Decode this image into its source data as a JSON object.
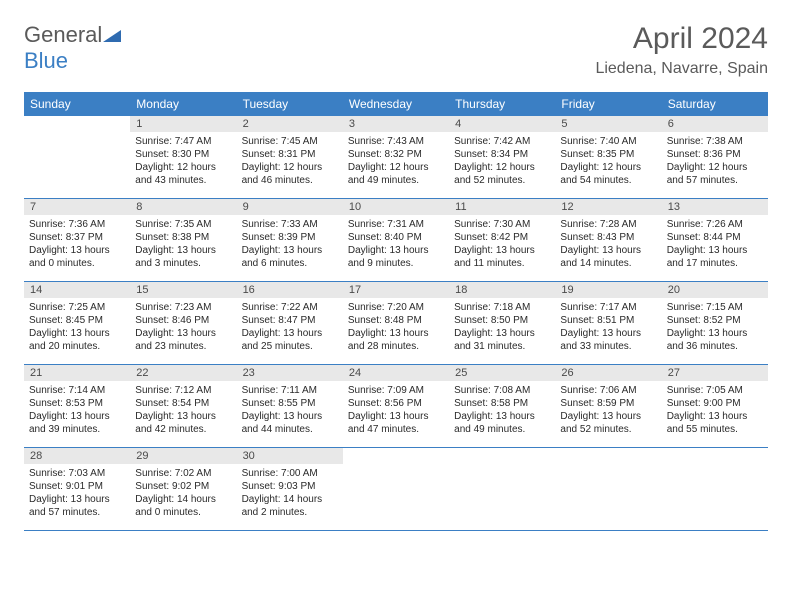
{
  "logo": {
    "text1": "General",
    "text2": "Blue"
  },
  "title": "April 2024",
  "location": "Liedena, Navarre, Spain",
  "colors": {
    "header_bg": "#3b7fc4",
    "header_fg": "#ffffff",
    "daynum_bg": "#e8e8e8",
    "text": "#2a2a2a",
    "title": "#5a5a5a",
    "rule": "#3b7fc4"
  },
  "weekdays": [
    "Sunday",
    "Monday",
    "Tuesday",
    "Wednesday",
    "Thursday",
    "Friday",
    "Saturday"
  ],
  "weeks": [
    [
      null,
      {
        "n": "1",
        "sr": "7:47 AM",
        "ss": "8:30 PM",
        "dl": "12 hours and 43 minutes."
      },
      {
        "n": "2",
        "sr": "7:45 AM",
        "ss": "8:31 PM",
        "dl": "12 hours and 46 minutes."
      },
      {
        "n": "3",
        "sr": "7:43 AM",
        "ss": "8:32 PM",
        "dl": "12 hours and 49 minutes."
      },
      {
        "n": "4",
        "sr": "7:42 AM",
        "ss": "8:34 PM",
        "dl": "12 hours and 52 minutes."
      },
      {
        "n": "5",
        "sr": "7:40 AM",
        "ss": "8:35 PM",
        "dl": "12 hours and 54 minutes."
      },
      {
        "n": "6",
        "sr": "7:38 AM",
        "ss": "8:36 PM",
        "dl": "12 hours and 57 minutes."
      }
    ],
    [
      {
        "n": "7",
        "sr": "7:36 AM",
        "ss": "8:37 PM",
        "dl": "13 hours and 0 minutes."
      },
      {
        "n": "8",
        "sr": "7:35 AM",
        "ss": "8:38 PM",
        "dl": "13 hours and 3 minutes."
      },
      {
        "n": "9",
        "sr": "7:33 AM",
        "ss": "8:39 PM",
        "dl": "13 hours and 6 minutes."
      },
      {
        "n": "10",
        "sr": "7:31 AM",
        "ss": "8:40 PM",
        "dl": "13 hours and 9 minutes."
      },
      {
        "n": "11",
        "sr": "7:30 AM",
        "ss": "8:42 PM",
        "dl": "13 hours and 11 minutes."
      },
      {
        "n": "12",
        "sr": "7:28 AM",
        "ss": "8:43 PM",
        "dl": "13 hours and 14 minutes."
      },
      {
        "n": "13",
        "sr": "7:26 AM",
        "ss": "8:44 PM",
        "dl": "13 hours and 17 minutes."
      }
    ],
    [
      {
        "n": "14",
        "sr": "7:25 AM",
        "ss": "8:45 PM",
        "dl": "13 hours and 20 minutes."
      },
      {
        "n": "15",
        "sr": "7:23 AM",
        "ss": "8:46 PM",
        "dl": "13 hours and 23 minutes."
      },
      {
        "n": "16",
        "sr": "7:22 AM",
        "ss": "8:47 PM",
        "dl": "13 hours and 25 minutes."
      },
      {
        "n": "17",
        "sr": "7:20 AM",
        "ss": "8:48 PM",
        "dl": "13 hours and 28 minutes."
      },
      {
        "n": "18",
        "sr": "7:18 AM",
        "ss": "8:50 PM",
        "dl": "13 hours and 31 minutes."
      },
      {
        "n": "19",
        "sr": "7:17 AM",
        "ss": "8:51 PM",
        "dl": "13 hours and 33 minutes."
      },
      {
        "n": "20",
        "sr": "7:15 AM",
        "ss": "8:52 PM",
        "dl": "13 hours and 36 minutes."
      }
    ],
    [
      {
        "n": "21",
        "sr": "7:14 AM",
        "ss": "8:53 PM",
        "dl": "13 hours and 39 minutes."
      },
      {
        "n": "22",
        "sr": "7:12 AM",
        "ss": "8:54 PM",
        "dl": "13 hours and 42 minutes."
      },
      {
        "n": "23",
        "sr": "7:11 AM",
        "ss": "8:55 PM",
        "dl": "13 hours and 44 minutes."
      },
      {
        "n": "24",
        "sr": "7:09 AM",
        "ss": "8:56 PM",
        "dl": "13 hours and 47 minutes."
      },
      {
        "n": "25",
        "sr": "7:08 AM",
        "ss": "8:58 PM",
        "dl": "13 hours and 49 minutes."
      },
      {
        "n": "26",
        "sr": "7:06 AM",
        "ss": "8:59 PM",
        "dl": "13 hours and 52 minutes."
      },
      {
        "n": "27",
        "sr": "7:05 AM",
        "ss": "9:00 PM",
        "dl": "13 hours and 55 minutes."
      }
    ],
    [
      {
        "n": "28",
        "sr": "7:03 AM",
        "ss": "9:01 PM",
        "dl": "13 hours and 57 minutes."
      },
      {
        "n": "29",
        "sr": "7:02 AM",
        "ss": "9:02 PM",
        "dl": "14 hours and 0 minutes."
      },
      {
        "n": "30",
        "sr": "7:00 AM",
        "ss": "9:03 PM",
        "dl": "14 hours and 2 minutes."
      },
      null,
      null,
      null,
      null
    ]
  ],
  "labels": {
    "sunrise": "Sunrise: ",
    "sunset": "Sunset: ",
    "daylight": "Daylight: "
  }
}
